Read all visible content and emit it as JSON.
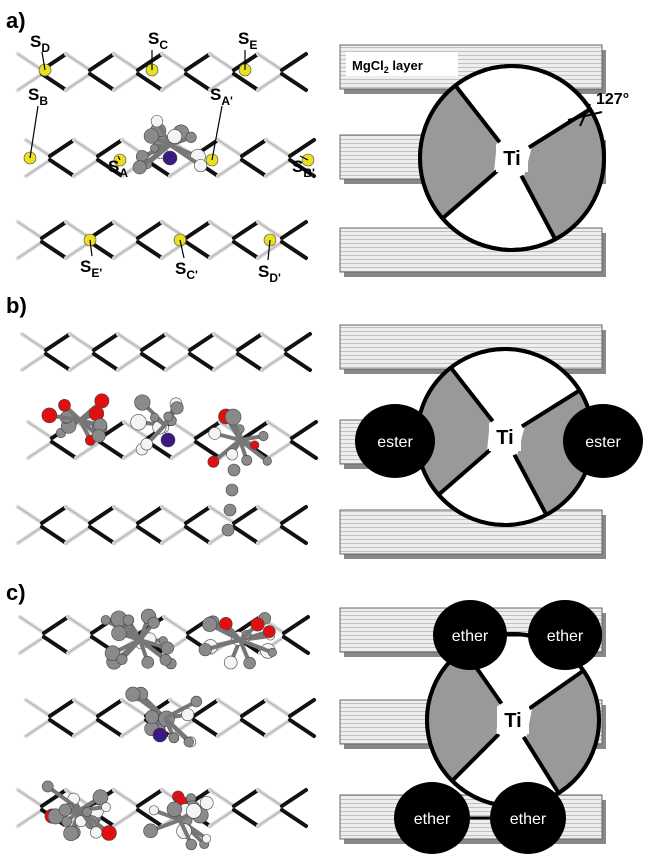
{
  "panels": [
    {
      "label": "a)",
      "sites": [
        {
          "main": "S",
          "sub": "D"
        },
        {
          "main": "S",
          "sub": "C"
        },
        {
          "main": "S",
          "sub": "E"
        },
        {
          "main": "S",
          "sub": "B"
        },
        {
          "main": "S",
          "sub": "A'"
        },
        {
          "main": "S",
          "sub": "A"
        },
        {
          "main": "S",
          "sub": "B'"
        },
        {
          "main": "S",
          "sub": "E'"
        },
        {
          "main": "S",
          "sub": "C'"
        },
        {
          "main": "S",
          "sub": "D'"
        }
      ],
      "layer_label": {
        "main": "MgCl",
        "sub": "2",
        "rest": " layer"
      },
      "angle_label": "127°",
      "center_label": "Ti"
    },
    {
      "label": "b)",
      "center_label": "Ti",
      "ligands": [
        "ester",
        "ester"
      ]
    },
    {
      "label": "c)",
      "center_label": "Ti",
      "ligands": [
        "ether",
        "ether",
        "ether",
        "ether"
      ]
    }
  ]
}
